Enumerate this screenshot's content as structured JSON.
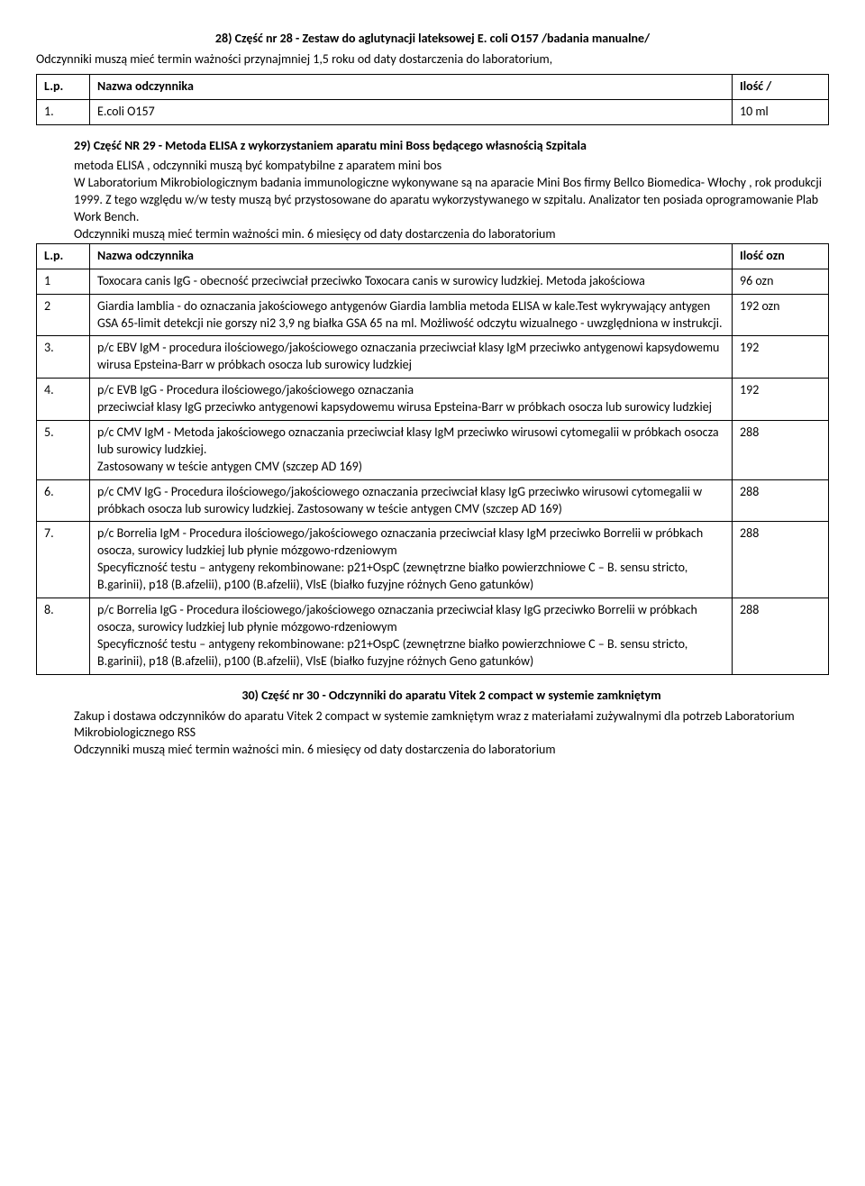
{
  "section28": {
    "title": "28) Część nr 28 - Zestaw do aglutynacji lateksowej E. coli O157 /badania manualne/",
    "intro": "Odczynniki muszą mieć termin ważności przynajmniej 1,5 roku od daty dostarczenia do laboratorium,",
    "headers": {
      "lp": "L.p.",
      "name": "Nazwa odczynnika",
      "qty": "Ilość  /"
    },
    "rows": [
      {
        "lp": "1.",
        "name": "E.coli O157",
        "qty": "10 ml"
      }
    ]
  },
  "section29": {
    "title": "29) Część NR 29 - Metoda ELISA z wykorzystaniem aparatu mini Boss będącego własnością Szpitala",
    "intro_lines": [
      "metoda ELISA , odczynniki muszą być kompatybilne z aparatem mini bos",
      "W Laboratorium Mikrobiologicznym badania immunologiczne wykonywane są na aparacie Mini Bos firmy Bellco Biomedica- Włochy , rok produkcji 1999. Z tego względu w/w testy muszą być przystosowane do aparatu wykorzystywanego w szpitalu. Analizator ten posiada oprogramowanie Plab Work Bench.",
      "Odczynniki muszą mieć termin ważności min. 6 miesięcy od daty dostarczenia do laboratorium"
    ],
    "headers": {
      "lp": "L.p.",
      "name": "Nazwa odczynnika",
      "qty": "Ilość ozn"
    },
    "rows": [
      {
        "lp": "1",
        "name": "Toxocara canis IgG - obecność przeciwciał przeciwko Toxocara canis w surowicy ludzkiej. Metoda jakościowa",
        "qty": "96 ozn"
      },
      {
        "lp": "2",
        "name": "Giardia lamblia - do oznaczania jakościowego antygenów Giardia lamblia metoda ELISA w kale.Test wykrywający antygen GSA 65-limit detekcji nie gorszy ni2 3,9 ng białka GSA 65 na ml. Możliwość odczytu wizualnego - uwzględniona w instrukcji.",
        "qty": "192 ozn"
      },
      {
        "lp": "3.",
        "name": "p/c EBV IgM - procedura ilościowego/jakościowego oznaczania przeciwciał klasy IgM przeciwko antygenowi kapsydowemu wirusa Epsteina-Barr w próbkach osocza lub surowicy ludzkiej",
        "qty": "192"
      },
      {
        "lp": "4.",
        "name": "p/c EVB IgG - Procedura ilościowego/jakościowego oznaczania\nprzeciwciał klasy IgG przeciwko antygenowi kapsydowemu wirusa Epsteina-Barr w próbkach osocza lub surowicy ludzkiej",
        "qty": "192"
      },
      {
        "lp": "5.",
        "name": "p/c CMV IgM - Metoda jakościowego oznaczania przeciwciał klasy IgM przeciwko wirusowi cytomegalii w próbkach osocza lub surowicy ludzkiej.\nZastosowany w teście antygen CMV (szczep AD 169)",
        "qty": "288"
      },
      {
        "lp": "6.",
        "name": "p/c CMV IgG - Procedura ilościowego/jakościowego oznaczania przeciwciał klasy IgG przeciwko wirusowi cytomegalii w próbkach osocza lub surowicy ludzkiej. Zastosowany w teście antygen CMV (szczep AD 169)",
        "qty": "288"
      },
      {
        "lp": "7.",
        "name": "p/c Borrelia IgM - Procedura ilościowego/jakościowego oznaczania przeciwciał klasy IgM przeciwko Borrelii w próbkach osocza, surowicy ludzkiej lub płynie mózgowo-rdzeniowym\nSpecyficzność testu – antygeny rekombinowane: p21+OspC (zewnętrzne białko powierzchniowe C – B. sensu stricto, B.garinii), p18 (B.afzelii), p100 (B.afzelii), VlsE (białko fuzyjne różnych Geno gatunków)",
        "qty": "288"
      },
      {
        "lp": "8.",
        "name": "p/c Borrelia IgG - Procedura ilościowego/jakościowego oznaczania przeciwciał klasy IgG przeciwko Borrelii w próbkach osocza, surowicy ludzkiej lub płynie mózgowo-rdzeniowym\nSpecyficzność testu – antygeny rekombinowane: p21+OspC (zewnętrzne białko powierzchniowe C – B. sensu stricto, B.garinii), p18 (B.afzelii), p100 (B.afzelii), VlsE (białko fuzyjne różnych Geno gatunków)",
        "qty": "288"
      }
    ]
  },
  "section30": {
    "title": "30) Część nr 30 - Odczynniki do aparatu Vitek 2 compact w systemie zamkniętym",
    "intro_lines": [
      "Zakup i dostawa odczynników do aparatu Vitek 2 compact w systemie zamkniętym wraz z materiałami zużywalnymi dla potrzeb Laboratorium Mikrobiologicznego RSS",
      "Odczynniki muszą mieć termin ważności min. 6 miesięcy od daty dostarczenia do laboratorium"
    ]
  }
}
